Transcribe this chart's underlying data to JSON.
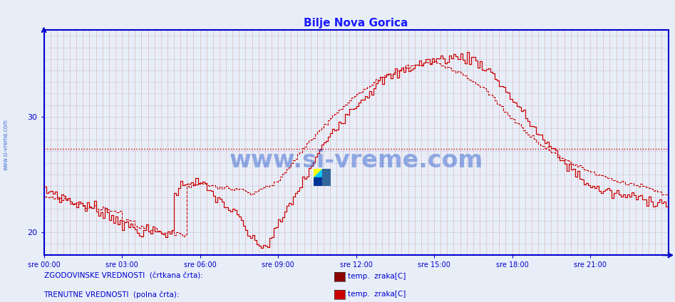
{
  "title": "Bilje Nova Gorica",
  "title_color": "#1a1aff",
  "bg_color": "#e8eef8",
  "plot_bg_color": "#e8eef8",
  "grid_color_h": "#8888bb",
  "grid_color_v": "#cc4444",
  "axis_color": "#0000cc",
  "ylim": [
    18.0,
    37.5
  ],
  "yticks": [
    20,
    30
  ],
  "xlim": [
    0,
    288
  ],
  "xtick_positions": [
    0,
    36,
    72,
    108,
    144,
    180,
    216,
    252,
    288
  ],
  "xtick_labels": [
    "sre 00:00",
    "sre 03:00",
    "sre 06:00",
    "sre 09:00",
    "sre 12:00",
    "sre 15:00",
    "sre 18:00",
    "sre 21:00",
    ""
  ],
  "line_color_solid": "#cc0000",
  "line_color_dashed": "#cc0000",
  "hline_y": 27.2,
  "hline_color": "#cc0000",
  "legend_text1": "ZGODOVINSKE VREDNOSTI  (črtkana črta):",
  "legend_text2": "TRENUTNE VREDNOSTI  (polna črta):",
  "legend_item1": "temp.  zraka[C]",
  "legend_item2": "temp.  zraka[C]",
  "watermark_text": "www.si-vreme.com",
  "watermark_color": "#2255cc",
  "sidewater_text": "www.si-vreme.com",
  "sidewater_color": "#2255cc"
}
